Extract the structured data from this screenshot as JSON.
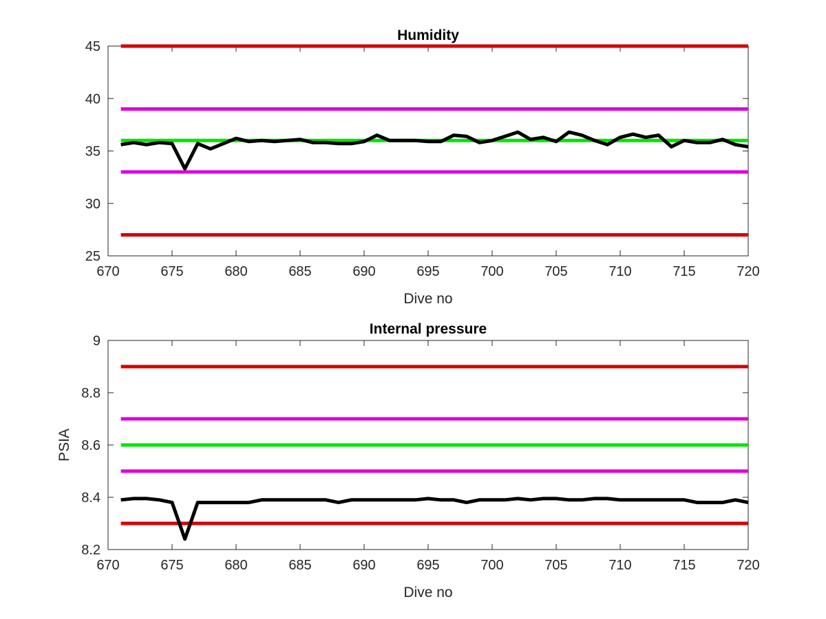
{
  "chart_data": [
    {
      "type": "line",
      "title": "Humidity",
      "xlabel": "Dive no",
      "ylabel": "",
      "xlim": [
        670,
        720
      ],
      "ylim": [
        25,
        45
      ],
      "xticks": [
        670,
        675,
        680,
        685,
        690,
        695,
        700,
        705,
        710,
        715,
        720
      ],
      "yticks": [
        25,
        30,
        35,
        40,
        45
      ],
      "grid": false,
      "series": [
        {
          "color": "#000000",
          "x": [
            671,
            672,
            673,
            674,
            675,
            676,
            677,
            678,
            679,
            680,
            681,
            682,
            683,
            684,
            685,
            686,
            687,
            688,
            689,
            690,
            691,
            692,
            693,
            694,
            695,
            696,
            697,
            698,
            699,
            700,
            701,
            702,
            703,
            704,
            705,
            706,
            707,
            708,
            709,
            710,
            711,
            712,
            713,
            714,
            715,
            716,
            717,
            718,
            719,
            720
          ],
          "values": [
            35.6,
            35.8,
            35.6,
            35.8,
            35.7,
            33.3,
            35.7,
            35.2,
            35.7,
            36.2,
            35.9,
            36.0,
            35.9,
            36.0,
            36.1,
            35.8,
            35.8,
            35.7,
            35.7,
            35.9,
            36.5,
            36.0,
            36.0,
            36.0,
            35.9,
            35.9,
            36.5,
            36.4,
            35.8,
            36.0,
            36.4,
            36.8,
            36.1,
            36.3,
            35.9,
            36.8,
            36.5,
            36.0,
            35.6,
            36.3,
            36.6,
            36.3,
            36.5,
            35.4,
            36.0,
            35.8,
            35.8,
            36.1,
            35.6,
            35.4
          ]
        },
        {
          "color": "#d40000",
          "x": [
            671,
            720
          ],
          "values": [
            45,
            45
          ]
        },
        {
          "color": "#dc00dc",
          "x": [
            671,
            720
          ],
          "values": [
            39,
            39
          ]
        },
        {
          "color": "#00e600",
          "x": [
            671,
            720
          ],
          "values": [
            36,
            36
          ]
        },
        {
          "color": "#dc00dc",
          "x": [
            671,
            720
          ],
          "values": [
            33,
            33
          ]
        },
        {
          "color": "#d40000",
          "x": [
            671,
            720
          ],
          "values": [
            27,
            27
          ]
        }
      ]
    },
    {
      "type": "line",
      "title": "Internal pressure",
      "xlabel": "Dive no",
      "ylabel": "PSIA",
      "xlim": [
        670,
        720
      ],
      "ylim": [
        8.2,
        9
      ],
      "xticks": [
        670,
        675,
        680,
        685,
        690,
        695,
        700,
        705,
        710,
        715,
        720
      ],
      "yticks": [
        8.2,
        8.4,
        8.6,
        8.8,
        9
      ],
      "grid": false,
      "series": [
        {
          "color": "#000000",
          "x": [
            671,
            672,
            673,
            674,
            675,
            676,
            677,
            678,
            679,
            680,
            681,
            682,
            683,
            684,
            685,
            686,
            687,
            688,
            689,
            690,
            691,
            692,
            693,
            694,
            695,
            696,
            697,
            698,
            699,
            700,
            701,
            702,
            703,
            704,
            705,
            706,
            707,
            708,
            709,
            710,
            711,
            712,
            713,
            714,
            715,
            716,
            717,
            718,
            719,
            720
          ],
          "values": [
            8.39,
            8.395,
            8.395,
            8.39,
            8.38,
            8.24,
            8.38,
            8.38,
            8.38,
            8.38,
            8.38,
            8.39,
            8.39,
            8.39,
            8.39,
            8.39,
            8.39,
            8.38,
            8.39,
            8.39,
            8.39,
            8.39,
            8.39,
            8.39,
            8.395,
            8.39,
            8.39,
            8.38,
            8.39,
            8.39,
            8.39,
            8.395,
            8.39,
            8.395,
            8.395,
            8.39,
            8.39,
            8.395,
            8.395,
            8.39,
            8.39,
            8.39,
            8.39,
            8.39,
            8.39,
            8.38,
            8.38,
            8.38,
            8.39,
            8.38
          ]
        },
        {
          "color": "#d40000",
          "x": [
            671,
            720
          ],
          "values": [
            8.9,
            8.9
          ]
        },
        {
          "color": "#dc00dc",
          "x": [
            671,
            720
          ],
          "values": [
            8.7,
            8.7
          ]
        },
        {
          "color": "#00e600",
          "x": [
            671,
            720
          ],
          "values": [
            8.6,
            8.6
          ]
        },
        {
          "color": "#dc00dc",
          "x": [
            671,
            720
          ],
          "values": [
            8.5,
            8.5
          ]
        },
        {
          "color": "#d40000",
          "x": [
            671,
            720
          ],
          "values": [
            8.3,
            8.3
          ]
        }
      ]
    }
  ]
}
